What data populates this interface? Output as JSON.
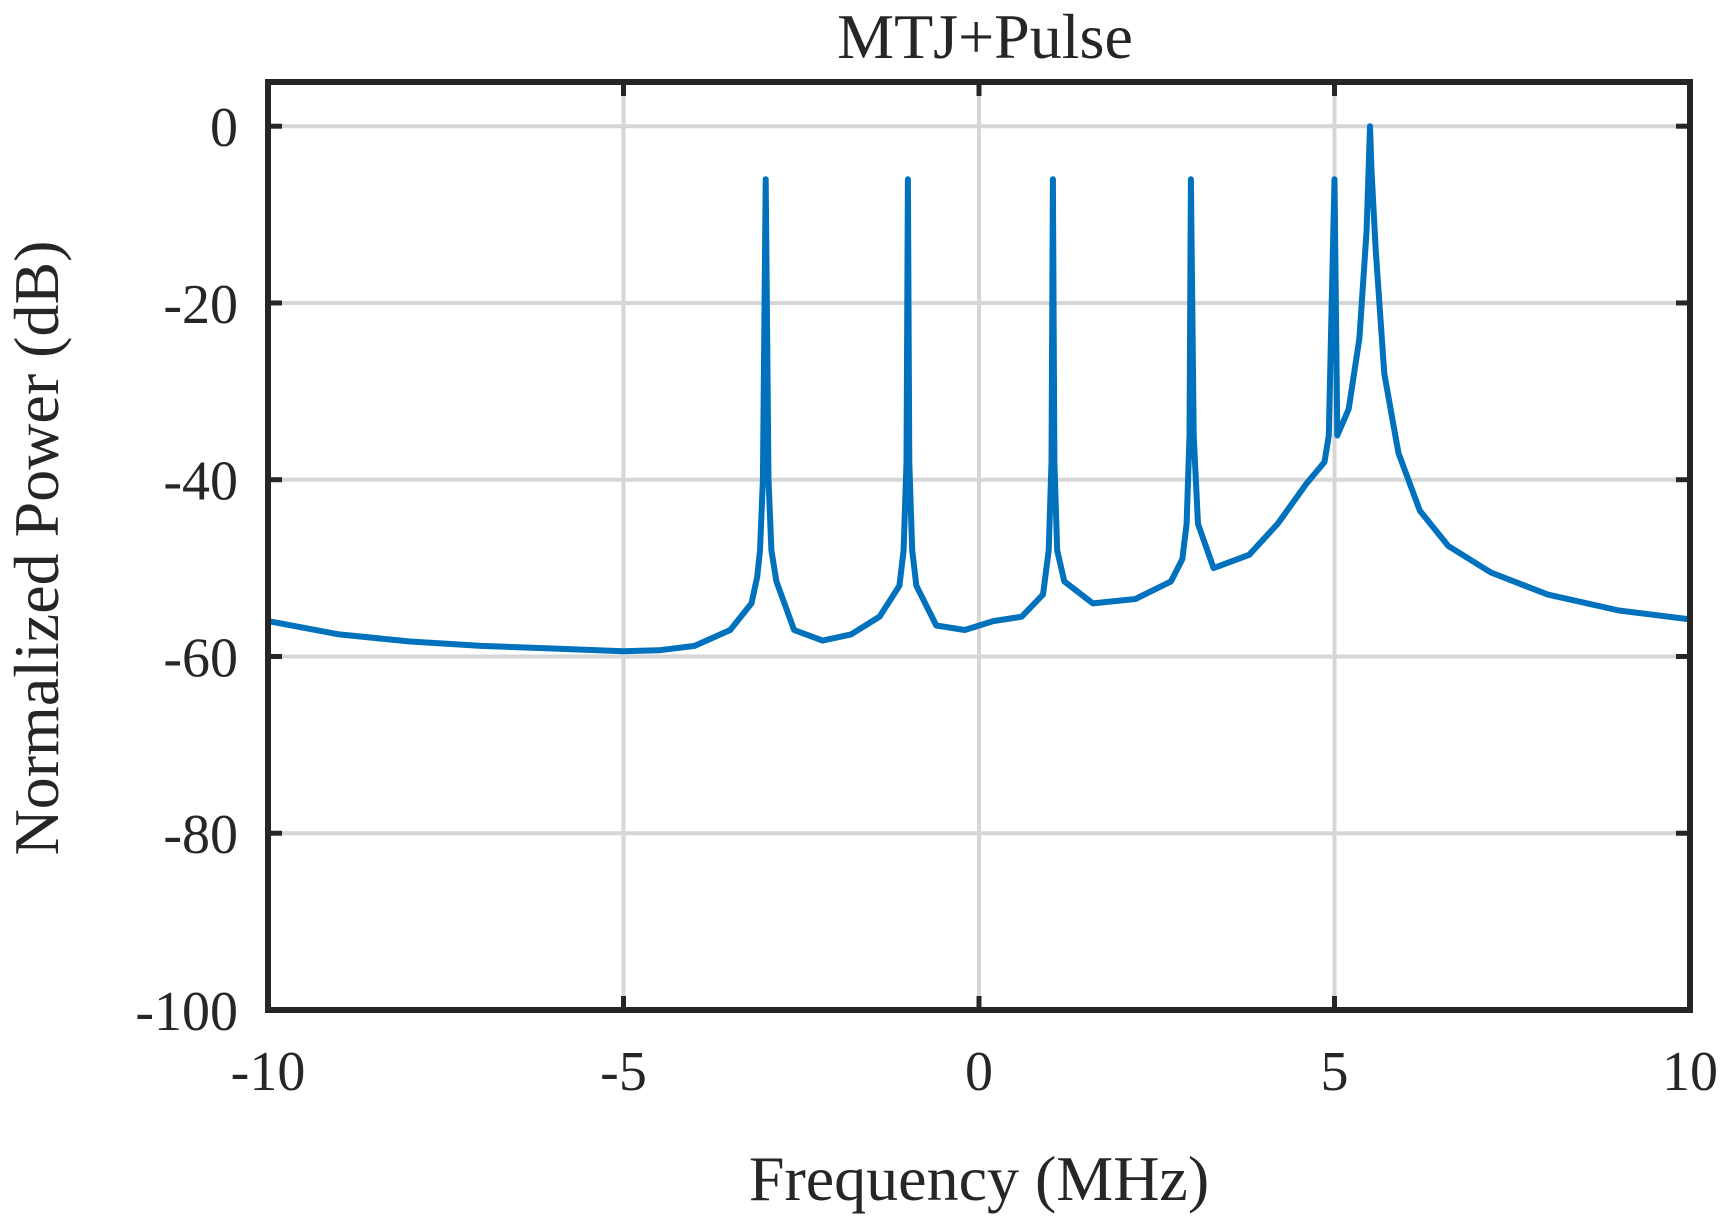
{
  "chart_data": {
    "type": "line",
    "title": "MTJ+Pulse",
    "xlabel": "Frequency (MHz)",
    "ylabel": "Normalized Power (dB)",
    "xlim": [
      -10,
      10
    ],
    "ylim": [
      -100,
      5
    ],
    "xticks": [
      -10,
      -5,
      0,
      5,
      10
    ],
    "xtick_labels": [
      "-10",
      "-5",
      "0",
      "5",
      "10"
    ],
    "yticks": [
      -100,
      -80,
      -60,
      -40,
      -20,
      0
    ],
    "ytick_labels": [
      "-100",
      "-80",
      "-60",
      "-40",
      "-20",
      "0"
    ],
    "grid": true,
    "legend": "none",
    "line_color": "#0072BD",
    "series": [
      {
        "name": "spectrum",
        "x": [
          -10,
          -9,
          -8,
          -7,
          -6,
          -5,
          -4.5,
          -4,
          -3.5,
          -3.2,
          -3.12,
          -3.08,
          -3.04,
          -3.0,
          -2.96,
          -2.92,
          -2.85,
          -2.6,
          -2.2,
          -1.8,
          -1.4,
          -1.12,
          -1.06,
          -1.02,
          -1.0,
          -0.98,
          -0.94,
          -0.88,
          -0.6,
          -0.2,
          0.2,
          0.6,
          0.9,
          0.98,
          1.02,
          1.04,
          1.06,
          1.1,
          1.2,
          1.6,
          2.2,
          2.7,
          2.86,
          2.92,
          2.96,
          2.98,
          3.02,
          3.08,
          3.3,
          3.8,
          4.2,
          4.6,
          4.86,
          4.92,
          4.96,
          5.0,
          5.04,
          5.2,
          5.35,
          5.45,
          5.48,
          5.5,
          5.52,
          5.58,
          5.7,
          5.9,
          6.2,
          6.6,
          7.2,
          8.0,
          9.0,
          10.0
        ],
        "values": [
          -56,
          -57.5,
          -58.3,
          -58.8,
          -59.1,
          -59.4,
          -59.3,
          -58.8,
          -57,
          -54,
          -51,
          -48,
          -40,
          -6,
          -40,
          -48,
          -51.5,
          -57,
          -58.2,
          -57.5,
          -55.5,
          -52,
          -48,
          -38,
          -6,
          -38,
          -48,
          -52,
          -56.5,
          -57,
          -56,
          -55.5,
          -53,
          -48,
          -38,
          -6,
          -38,
          -48,
          -51.5,
          -54,
          -53.5,
          -51.5,
          -49,
          -45,
          -35,
          -6,
          -35,
          -45,
          -50,
          -48.5,
          -45,
          -40.5,
          -38,
          -35,
          -20,
          -6,
          -35,
          -32,
          -24,
          -12,
          -5,
          0,
          -5,
          -14,
          -28,
          -37,
          -43.5,
          -47.5,
          -50.5,
          -53,
          -54.8,
          -55.8
        ]
      }
    ]
  }
}
